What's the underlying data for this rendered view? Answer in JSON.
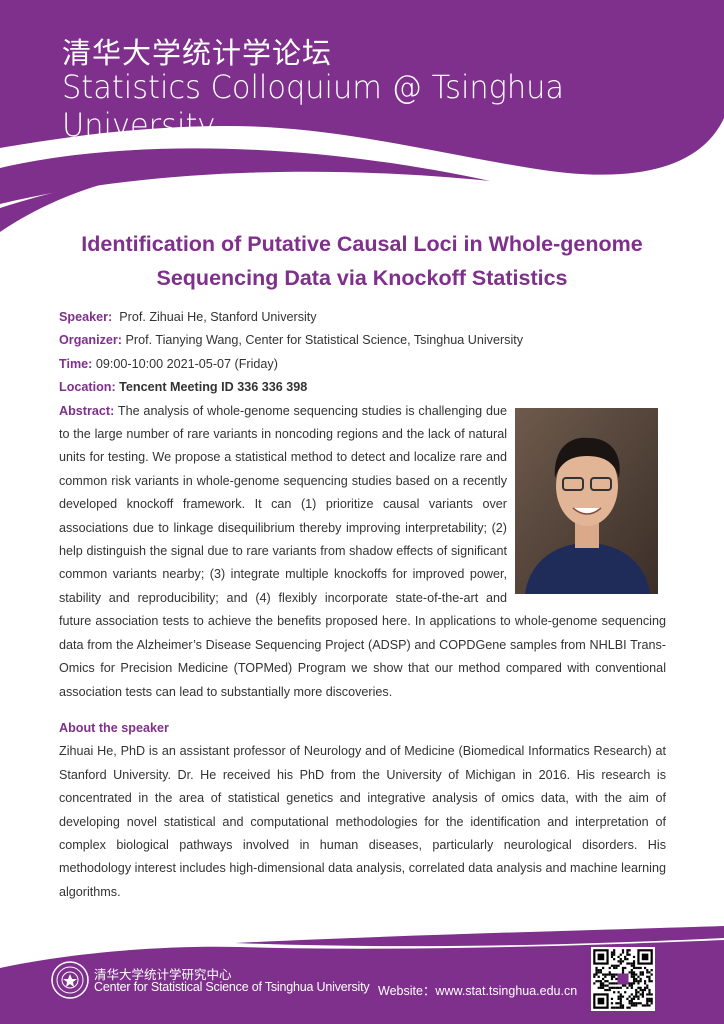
{
  "header": {
    "title_cn": "清华大学统计学论坛",
    "title_en": "Statistics Colloquium @ Tsinghua University"
  },
  "talk": {
    "title_line1": "Identification of Putative Causal Loci in Whole-genome",
    "title_line2": "Sequencing Data via Knockoff Statistics",
    "speaker_label": "Speaker:",
    "speaker": "Prof. Zihuai He, Stanford University",
    "organizer_label": "Organizer:",
    "organizer": "Prof. Tianying Wang, Center for Statistical Science, Tsinghua University",
    "time_label": "Time:",
    "time": "09:00-10:00 2021-05-07 (Friday)",
    "location_label": "Location:",
    "location": "Tencent Meeting ID 336 336 398",
    "abstract_label": "Abstract:",
    "abstract": "The analysis of whole-genome sequencing studies is challenging due to the large number of rare variants in noncoding regions and the lack of natural units for testing. We propose a statistical method to detect and localize rare and common risk variants in whole-genome sequencing studies based on a recently developed knockoff framework. It can (1) prioritize causal variants over associations due to linkage disequilibrium thereby improving interpretability; (2) help distinguish the signal due to rare variants from shadow effects of significant common variants nearby; (3) integrate multiple knockoffs for improved power, stability and reproducibility; and (4) flexibly incorporate state-of-the-art and future association tests to achieve the benefits proposed here. In applications to whole-genome sequencing data from the Alzheimer’s Disease Sequencing Project (ADSP) and COPDGene samples from NHLBI Trans-Omics for Precision Medicine (TOPMed) Program we show that our method compared with conventional association tests can lead to substantially more discoveries."
  },
  "about": {
    "heading": "About the speaker",
    "text": "Zihuai He, PhD is an assistant professor of Neurology and of Medicine (Biomedical Informatics Research) at Stanford University. Dr. He received his PhD from the University of Michigan in 2016. His research is concentrated in the area of statistical genetics and integrative analysis of omics data, with the aim of developing novel statistical and computational methodologies for the identification and interpretation of complex biological pathways involved in human diseases, particularly neurological disorders. His methodology interest includes high-dimensional data analysis, correlated data analysis and machine learning algorithms."
  },
  "footer": {
    "center_cn": "清华大学统计学研究中心",
    "center_en": "Center for Statistical Science of Tsinghua University",
    "website": "Website：www.stat.tsinghua.edu.cn"
  },
  "colors": {
    "brand_purple": "#7f2f8c"
  }
}
